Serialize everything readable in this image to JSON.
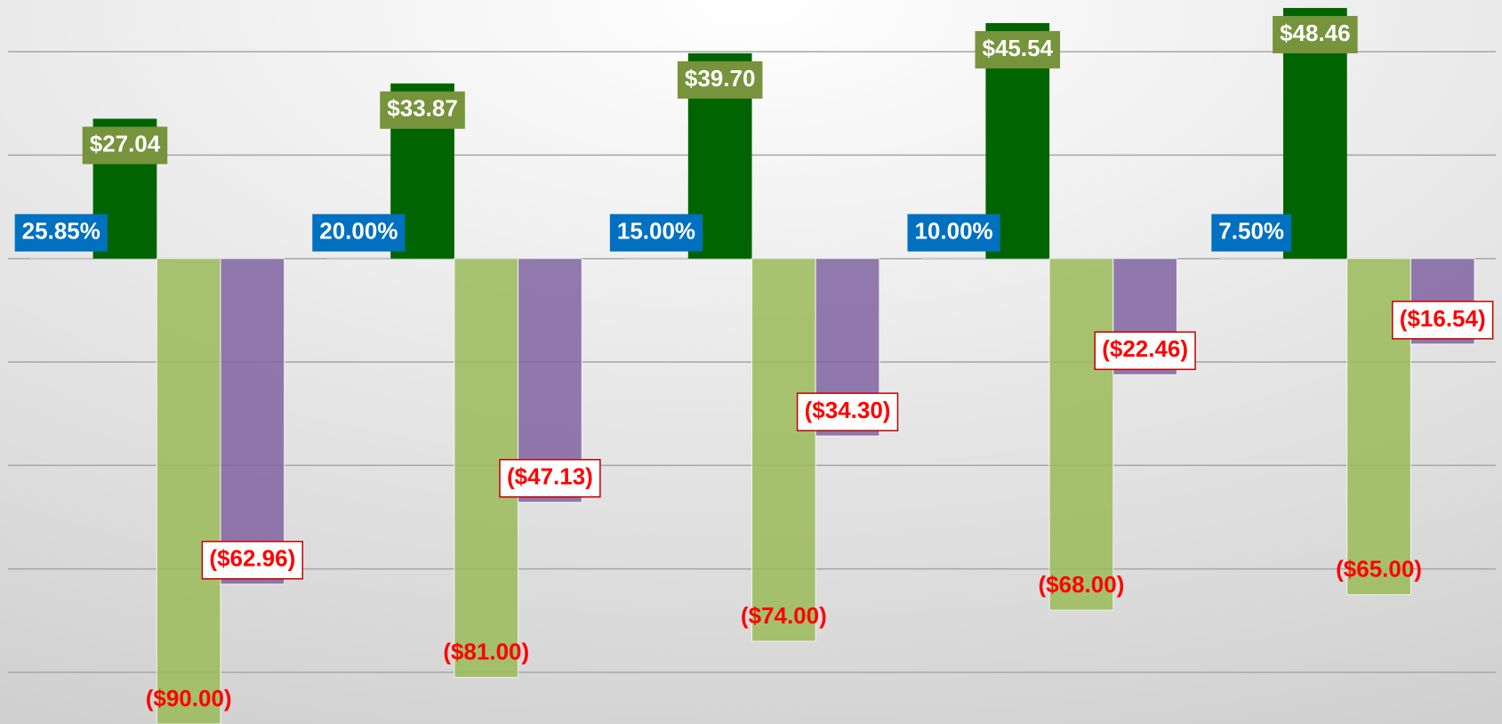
{
  "chart_data": {
    "type": "bar",
    "categories": [
      null,
      null,
      null,
      null,
      null
    ],
    "ylim": [
      -90,
      50
    ],
    "yticks": [
      -80,
      -60,
      -40,
      -20,
      0,
      20,
      40
    ],
    "grid": true,
    "series": [
      {
        "color": "#d9d9d9",
        "values": [
          0.2585,
          0.2,
          0.15,
          0.1,
          0.075
        ],
        "value_labels": [
          "25.85%",
          "20.00%",
          "15.00%",
          "10.00%",
          "7.50%"
        ],
        "label_style": "box",
        "label_color": "#0070c0"
      },
      {
        "color": "#006400",
        "values": [
          27.04,
          33.87,
          39.7,
          45.54,
          48.46
        ],
        "value_labels": [
          "$27.04",
          "$33.87",
          "$39.70",
          "$45.54",
          "$48.46"
        ],
        "label_style": "box",
        "label_color": "#77933c"
      },
      {
        "color": "#9bbb59",
        "values": [
          -90,
          -81,
          -74,
          -68,
          -65
        ],
        "value_labels": [
          "($90.00)",
          "($81.00)",
          "($74.00)",
          "($68.00)",
          "($65.00)"
        ],
        "label_style": "plain",
        "label_color": "#ff0000"
      },
      {
        "color": "#8064a2",
        "values": [
          -62.96,
          -47.13,
          -34.3,
          -22.46,
          -16.54
        ],
        "value_labels": [
          "($62.96)",
          "($47.13)",
          "($34.30)",
          "($22.46)",
          "($16.54)"
        ],
        "label_style": "outline",
        "label_color": "#ff0000"
      }
    ]
  }
}
